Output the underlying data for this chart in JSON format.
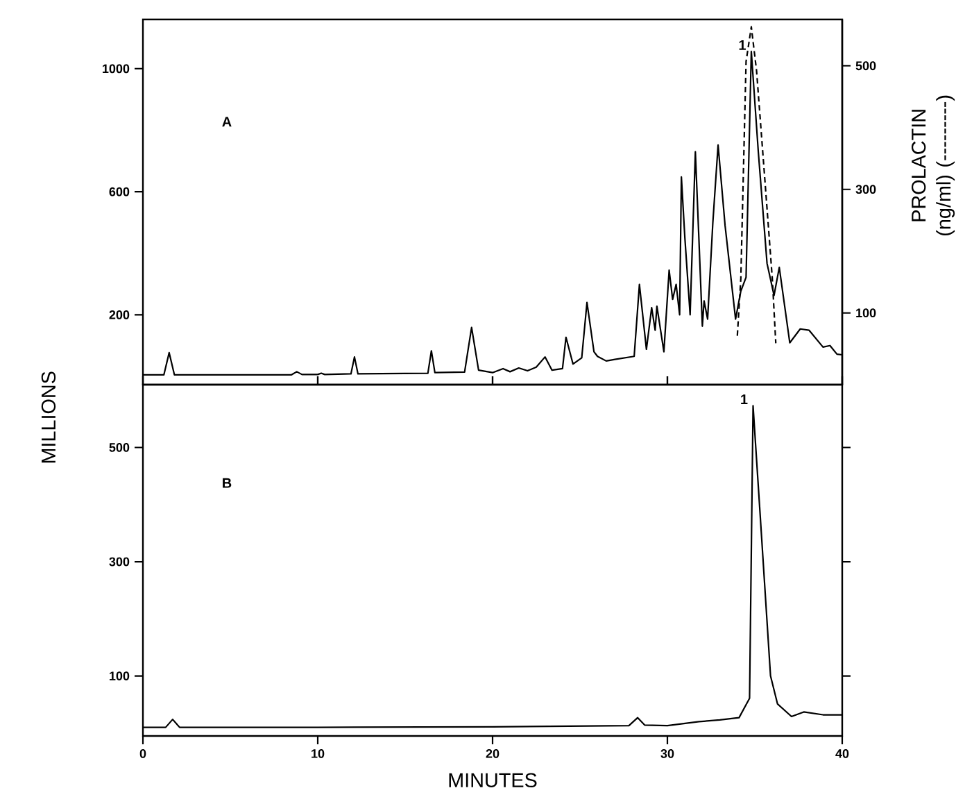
{
  "chart_data": [
    {
      "type": "line",
      "ylabel": "MILLIONS",
      "y2label": "PROLACTIN (ng/ml) (---------)",
      "annotations": [
        "A",
        {
          "text": "1",
          "x": 34.6,
          "y": 1056
        }
      ],
      "tick_labels": "y",
      "xlim": [
        0,
        40
      ],
      "xticks": [
        {
          "value": 0,
          "label": null
        },
        {
          "value": 10,
          "label": null
        },
        {
          "value": 20,
          "label": null
        },
        {
          "value": 30,
          "label": null
        },
        {
          "value": 40,
          "label": null
        }
      ],
      "ylim": [
        -27,
        1160
      ],
      "yticks": [
        200,
        600,
        1000
      ],
      "y2lim": [
        -16,
        575
      ],
      "y2ticks": [
        100,
        300,
        500
      ],
      "series": [
        {
          "color": "#000000",
          "line_style": "solid",
          "x": [
            0,
            1.2,
            1.5,
            1.8,
            8.5,
            8.8,
            9.1,
            10.0,
            10.2,
            10.4,
            11.9,
            12.1,
            12.3,
            16.3,
            16.5,
            16.7,
            18.4,
            18.8,
            19.2,
            20.0,
            20.6,
            21.0,
            21.5,
            22.0,
            22.5,
            23.0,
            23.4,
            24.0,
            24.2,
            24.6,
            25.1,
            25.4,
            25.8,
            26.0,
            26.5,
            27.0,
            28.1,
            28.4,
            28.8,
            29.1,
            29.3,
            29.4,
            29.8,
            30.1,
            30.3,
            30.5,
            30.7,
            30.8,
            31.0,
            31.3,
            31.6,
            31.8,
            32.0,
            32.1,
            32.3,
            32.6,
            32.9,
            33.3,
            33.9,
            34.2,
            34.5,
            34.8,
            35.2,
            35.7,
            36.1,
            36.4,
            37.0,
            37.6,
            38.1,
            38.9,
            39.3,
            39.7,
            40.0
          ],
          "values": [
            5,
            5,
            77,
            5,
            5,
            15,
            6,
            6,
            10,
            6,
            8,
            63,
            8,
            10,
            83,
            12,
            14,
            159,
            20,
            12,
            25,
            15,
            27,
            18,
            30,
            63,
            20,
            25,
            127,
            40,
            60,
            240,
            80,
            65,
            50,
            55,
            65,
            299,
            88,
            223,
            150,
            228,
            80,
            345,
            250,
            299,
            200,
            648,
            450,
            200,
            730,
            450,
            163,
            245,
            186,
            500,
            752,
            490,
            186,
            277,
            322,
            1056,
            730,
            367,
            263,
            354,
            109,
            154,
            150,
            95,
            100,
            72,
            70
          ]
        },
        {
          "type": "line",
          "axis": "y2",
          "color": "#000000",
          "line_style": "dashed",
          "x": [
            34.0,
            34.2,
            34.5,
            34.8,
            35.1,
            35.6,
            36.0,
            36.2
          ],
          "values": [
            63,
            156,
            507,
            563,
            492,
            306,
            156,
            51
          ]
        }
      ]
    },
    {
      "type": "line",
      "xlabel": "MINUTES",
      "annotations": [
        "B",
        {
          "text": "1",
          "x": 34.7,
          "y": 573
        }
      ],
      "xlim": [
        0,
        40
      ],
      "xticks": [
        0,
        10,
        20,
        30,
        40
      ],
      "ylim": [
        -5,
        610
      ],
      "yticks": [
        100,
        300,
        500
      ],
      "series": [
        {
          "color": "#000000",
          "line_style": "solid",
          "x": [
            0,
            1.3,
            1.7,
            2.1,
            10,
            20,
            27.8,
            28.3,
            28.7,
            30.0,
            31.8,
            33.0,
            34.1,
            34.7,
            34.9,
            35.3,
            35.9,
            36.3,
            37.1,
            37.8,
            38.9,
            40.0
          ],
          "values": [
            10,
            10,
            24,
            10,
            10,
            11,
            13,
            27,
            14,
            13,
            20,
            23,
            27,
            61,
            573,
            385,
            100,
            51,
            29,
            37,
            32,
            32
          ]
        }
      ]
    }
  ]
}
